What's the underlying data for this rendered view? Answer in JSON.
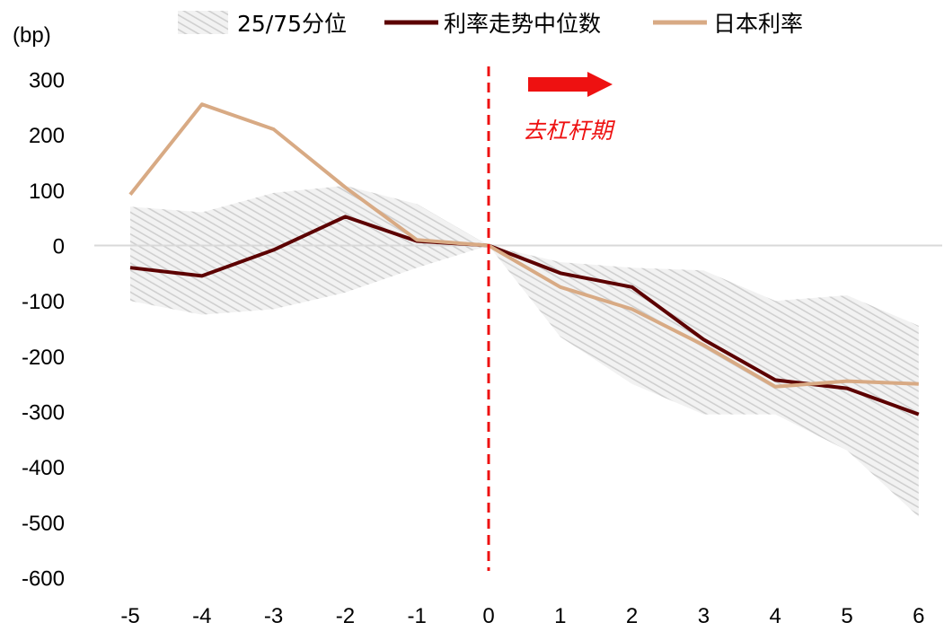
{
  "chart_data": {
    "type": "line",
    "unit_label": "(bp)",
    "x": [
      -5,
      -4,
      -3,
      -2,
      -1,
      0,
      1,
      2,
      3,
      4,
      5,
      6
    ],
    "x_tick_labels": [
      "-5",
      "-4",
      "-3",
      "-2",
      "-1",
      "0",
      "1",
      "2",
      "3",
      "4",
      "5",
      "6"
    ],
    "y_ticks": [
      300,
      200,
      100,
      0,
      -100,
      -200,
      -300,
      -400,
      -500,
      -600
    ],
    "y_tick_labels": [
      "300",
      "200",
      "100",
      "0",
      "-100",
      "-200",
      "-300",
      "-400",
      "-500",
      "-600"
    ],
    "ylim": [
      -600,
      300
    ],
    "band": {
      "name": "25/75分位",
      "upper": [
        70,
        60,
        95,
        108,
        75,
        0,
        -30,
        -40,
        -45,
        -100,
        -90,
        -145
      ],
      "lower": [
        -100,
        -125,
        -115,
        -85,
        -40,
        0,
        -165,
        -250,
        -305,
        -305,
        -370,
        -490
      ]
    },
    "series": [
      {
        "name": "利率走势中位数",
        "color": "#5c0000",
        "values": [
          -40,
          -55,
          -8,
          52,
          8,
          0,
          -50,
          -75,
          -170,
          -243,
          -258,
          -305
        ]
      },
      {
        "name": "日本利率",
        "color": "#d8aa84",
        "values": [
          92,
          255,
          210,
          105,
          10,
          0,
          -75,
          -115,
          -180,
          -255,
          -245,
          -250
        ]
      }
    ],
    "vline": {
      "x": 0,
      "color": "#ee1111",
      "style": "dashed"
    },
    "annotation": {
      "text": "去杠杆期",
      "color": "#ee1111"
    },
    "legend_position": "top",
    "grid": false
  }
}
